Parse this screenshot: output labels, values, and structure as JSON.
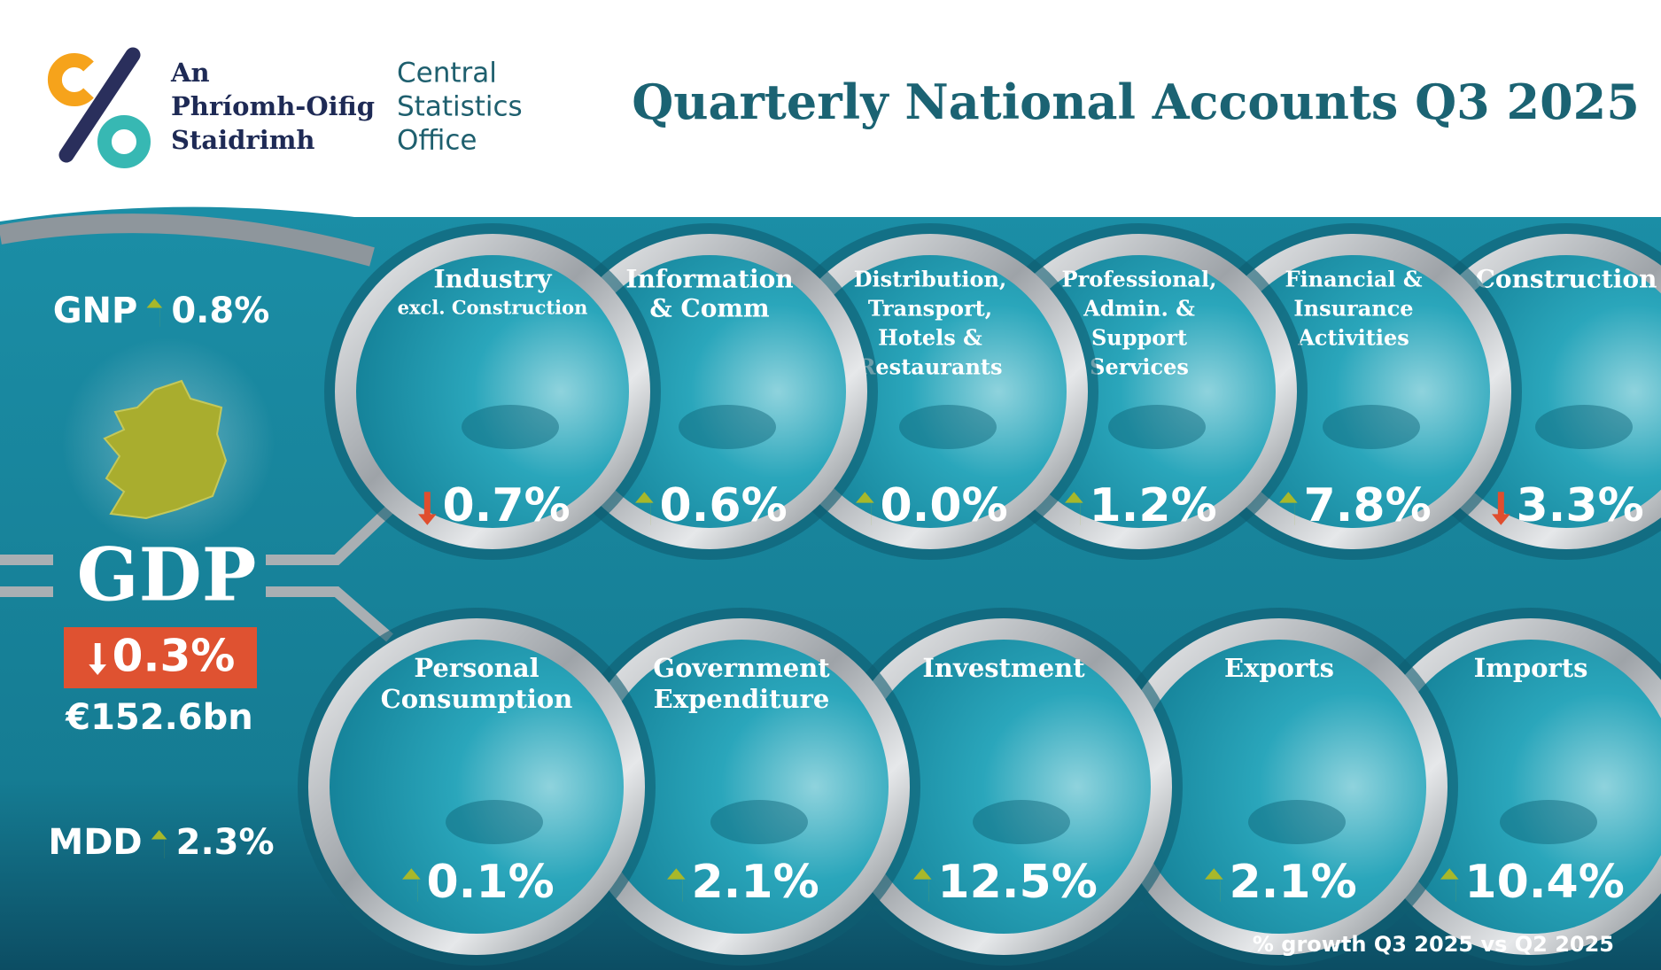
{
  "header": {
    "logo": {
      "irish": [
        "An",
        "Phríomh-Oifig",
        "Staidrimh"
      ],
      "english": [
        "Central",
        "Statistics",
        "Office"
      ]
    },
    "title": "Quarterly National Accounts Q3 2025"
  },
  "summary": {
    "gnp": {
      "label": "GNP",
      "value": "0.8%",
      "direction": "up"
    },
    "gdp": {
      "label": "GDP",
      "value": "0.3%",
      "direction": "down",
      "level": "€152.6bn"
    },
    "mdd": {
      "label": "MDD",
      "value": "2.3%",
      "direction": "up"
    }
  },
  "sectors": [
    {
      "lines": [
        "Industry",
        "excl. Construction"
      ],
      "value": "0.7%",
      "direction": "down"
    },
    {
      "lines": [
        "Information",
        "& Comm"
      ],
      "value": "0.6%",
      "direction": "up"
    },
    {
      "lines": [
        "Distribution,",
        "Transport,",
        "Hotels &",
        "Restaurants"
      ],
      "value": "0.0%",
      "direction": "up"
    },
    {
      "lines": [
        "Professional,",
        "Admin. &",
        "Support",
        "Services"
      ],
      "value": "1.2%",
      "direction": "up"
    },
    {
      "lines": [
        "Financial &",
        "Insurance",
        "Activities"
      ],
      "value": "7.8%",
      "direction": "up"
    },
    {
      "lines": [
        "Construction"
      ],
      "value": "3.3%",
      "direction": "down"
    }
  ],
  "expenditure": [
    {
      "lines": [
        "Personal",
        "Consumption"
      ],
      "value": "0.1%",
      "direction": "up"
    },
    {
      "lines": [
        "Government",
        "Expenditure"
      ],
      "value": "2.1%",
      "direction": "up"
    },
    {
      "lines": [
        "Investment"
      ],
      "value": "12.5%",
      "direction": "up"
    },
    {
      "lines": [
        "Exports"
      ],
      "value": "2.1%",
      "direction": "up"
    },
    {
      "lines": [
        "Imports"
      ],
      "value": "10.4%",
      "direction": "up"
    }
  ],
  "footnote": "% growth Q3 2025 vs Q2 2025"
}
